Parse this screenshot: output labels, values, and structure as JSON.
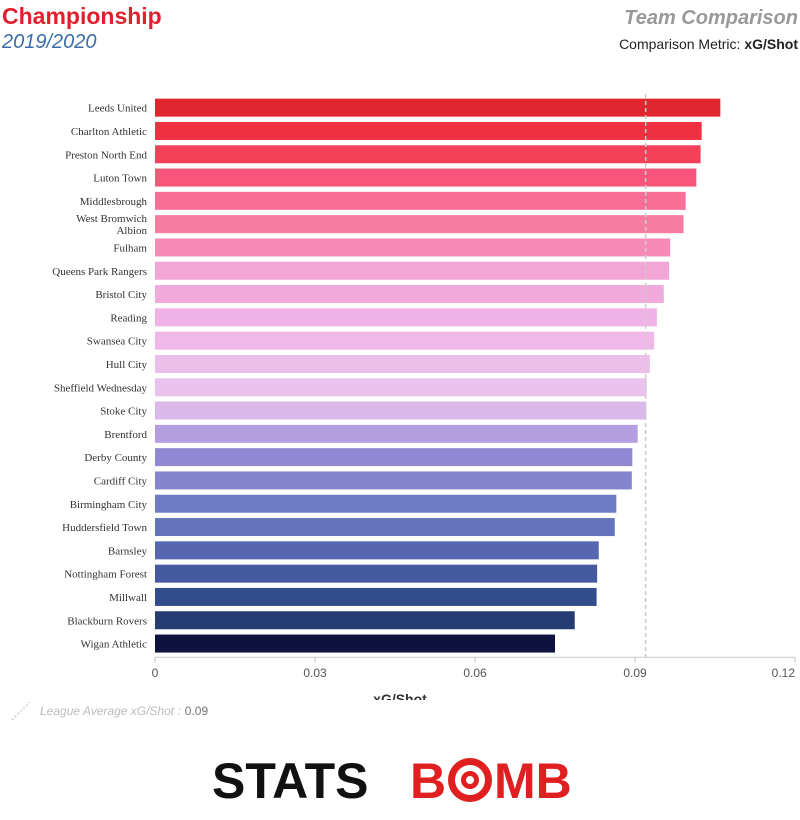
{
  "header": {
    "league": "Championship",
    "season": "2019/2020",
    "subtitle": "Team Comparison",
    "metric_label": "Comparison Metric:",
    "metric_value": "xG/Shot"
  },
  "legend": {
    "label": "League Average xG/Shot :",
    "value": "0.09"
  },
  "logo": {
    "text_left": "STATS",
    "text_b": "B",
    "text_o": "O",
    "text_m": "MB",
    "color_dark": "#111111",
    "color_red": "#e02020"
  },
  "chart_data": {
    "type": "bar",
    "orientation": "horizontal",
    "xlabel": "xG/Shot",
    "xlim": [
      0,
      0.12
    ],
    "xticks": [
      "0",
      "0.03",
      "0.06",
      "0.09",
      "0.12"
    ],
    "xtick_values": [
      0,
      0.03,
      0.06,
      0.09,
      0.12
    ],
    "reference_line": 0.092,
    "grid": false,
    "categories": [
      "Leeds United",
      "Charlton Athletic",
      "Preston North End",
      "Luton Town",
      "Middlesbrough",
      "West Bromwich Albion",
      "Fulham",
      "Queens Park Rangers",
      "Bristol City",
      "Reading",
      "Swansea City",
      "Hull City",
      "Sheffield Wednesday",
      "Stoke City",
      "Brentford",
      "Derby County",
      "Cardiff City",
      "Birmingham City",
      "Huddersfield Town",
      "Barnsley",
      "Nottingham Forest",
      "Millwall",
      "Blackburn Rovers",
      "Wigan Athletic"
    ],
    "label_lines": [
      [
        "Leeds United"
      ],
      [
        "Charlton Athletic"
      ],
      [
        "Preston North End"
      ],
      [
        "Luton Town"
      ],
      [
        "Middlesbrough"
      ],
      [
        "West Bromwich",
        "Albion"
      ],
      [
        "Fulham"
      ],
      [
        "Queens Park Rangers"
      ],
      [
        "Bristol City"
      ],
      [
        "Reading"
      ],
      [
        "Swansea City"
      ],
      [
        "Hull City"
      ],
      [
        "Sheffield Wednesday"
      ],
      [
        "Stoke City"
      ],
      [
        "Brentford"
      ],
      [
        "Derby County"
      ],
      [
        "Cardiff City"
      ],
      [
        "Birmingham City"
      ],
      [
        "Huddersfield Town"
      ],
      [
        "Barnsley"
      ],
      [
        "Nottingham Forest"
      ],
      [
        "Millwall"
      ],
      [
        "Blackburn Rovers"
      ],
      [
        "Wigan Athletic"
      ]
    ],
    "values": [
      0.106,
      0.1025,
      0.1023,
      0.1015,
      0.0995,
      0.0991,
      0.0966,
      0.0964,
      0.0954,
      0.0941,
      0.0936,
      0.0928,
      0.0922,
      0.0921,
      0.0905,
      0.0895,
      0.0894,
      0.0865,
      0.0862,
      0.0832,
      0.0829,
      0.0828,
      0.0787,
      0.075
    ],
    "colors": [
      "#e0262e",
      "#ee3040",
      "#f5405a",
      "#f7557a",
      "#f76e96",
      "#f77ca2",
      "#f78bb8",
      "#f2a6d6",
      "#f0aadc",
      "#f0b2e6",
      "#f0b8e8",
      "#ecbeea",
      "#e9c2ee",
      "#dab8ea",
      "#b39ee0",
      "#9088d2",
      "#8684cc",
      "#6e7cc8",
      "#6374bc",
      "#5666b0",
      "#465aa0",
      "#334d8c",
      "#243c72",
      "#0e123e"
    ]
  }
}
